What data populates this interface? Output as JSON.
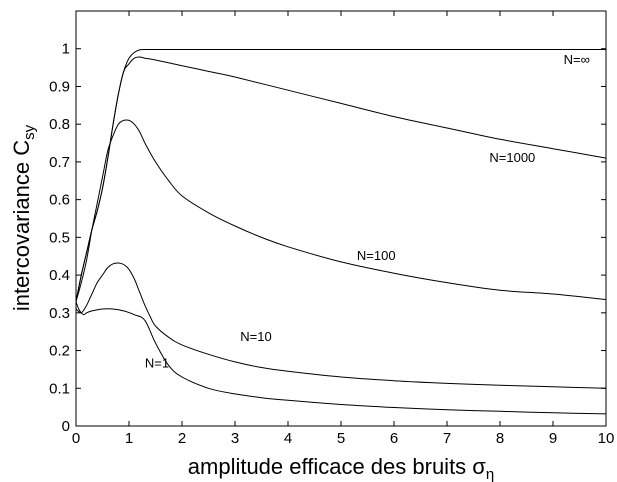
{
  "chart_data": {
    "type": "line",
    "title": "",
    "xlabel": {
      "main": "amplitude efficace des bruits ",
      "symbol": "σ",
      "subscript": "η"
    },
    "ylabel": {
      "main": "intercovariance C",
      "subscript": "sy"
    },
    "xlim": [
      0,
      10
    ],
    "ylim": [
      0,
      1.1
    ],
    "xticks": [
      0,
      1,
      2,
      3,
      4,
      5,
      6,
      7,
      8,
      9,
      10
    ],
    "yticks": [
      0,
      0.1,
      0.2,
      0.3,
      0.4,
      0.5,
      0.6,
      0.7,
      0.8,
      0.9,
      1
    ],
    "grid": false,
    "legend": "none",
    "series": [
      {
        "name": "N=∞",
        "x": [
          0,
          0.1,
          0.2,
          0.3,
          0.4,
          0.5,
          0.6,
          0.7,
          0.8,
          0.9,
          1.0,
          1.1,
          1.2,
          1.3,
          1.5,
          2,
          3,
          4,
          5,
          6,
          7,
          8,
          9,
          10
        ],
        "y": [
          0.33,
          0.4,
          0.46,
          0.52,
          0.57,
          0.63,
          0.71,
          0.8,
          0.88,
          0.94,
          0.975,
          0.99,
          0.997,
          0.998,
          0.998,
          0.998,
          0.998,
          0.998,
          0.998,
          0.998,
          0.998,
          0.998,
          0.998,
          0.998
        ],
        "label_at": [
          9.2,
          0.96
        ]
      },
      {
        "name": "N=1000",
        "x": [
          0,
          0.1,
          0.2,
          0.3,
          0.4,
          0.5,
          0.6,
          0.7,
          0.8,
          0.9,
          1.0,
          1.1,
          1.2,
          1.3,
          1.5,
          2,
          2.5,
          3,
          4,
          5,
          6,
          7,
          8,
          9,
          10
        ],
        "y": [
          0.33,
          0.4,
          0.46,
          0.52,
          0.57,
          0.63,
          0.71,
          0.8,
          0.88,
          0.94,
          0.96,
          0.975,
          0.978,
          0.975,
          0.97,
          0.955,
          0.94,
          0.925,
          0.89,
          0.855,
          0.82,
          0.79,
          0.76,
          0.735,
          0.71
        ],
        "label_at": [
          7.8,
          0.7
        ]
      },
      {
        "name": "N=100",
        "x": [
          0,
          0.1,
          0.2,
          0.3,
          0.4,
          0.5,
          0.6,
          0.7,
          0.8,
          0.9,
          1.0,
          1.1,
          1.2,
          1.3,
          1.5,
          1.75,
          2,
          2.5,
          3,
          3.5,
          4,
          5,
          6,
          7,
          8,
          9,
          10
        ],
        "y": [
          0.33,
          0.38,
          0.44,
          0.52,
          0.59,
          0.66,
          0.73,
          0.77,
          0.8,
          0.81,
          0.81,
          0.8,
          0.78,
          0.75,
          0.7,
          0.65,
          0.61,
          0.565,
          0.53,
          0.5,
          0.475,
          0.435,
          0.405,
          0.38,
          0.36,
          0.35,
          0.335
        ],
        "label_at": [
          5.3,
          0.44
        ]
      },
      {
        "name": "N=10",
        "x": [
          0,
          0.1,
          0.2,
          0.3,
          0.4,
          0.5,
          0.6,
          0.7,
          0.8,
          0.9,
          1.0,
          1.1,
          1.2,
          1.3,
          1.4,
          1.5,
          1.75,
          2,
          2.5,
          3,
          3.5,
          4,
          5,
          6,
          7,
          8,
          9,
          10
        ],
        "y": [
          0.31,
          0.3,
          0.32,
          0.35,
          0.38,
          0.4,
          0.42,
          0.43,
          0.432,
          0.428,
          0.415,
          0.39,
          0.355,
          0.32,
          0.29,
          0.265,
          0.235,
          0.215,
          0.19,
          0.17,
          0.155,
          0.145,
          0.13,
          0.12,
          0.113,
          0.108,
          0.104,
          0.1
        ],
        "label_at": [
          3.1,
          0.225
        ]
      },
      {
        "name": "N=1",
        "x": [
          0,
          0.05,
          0.1,
          0.15,
          0.2,
          0.3,
          0.5,
          0.7,
          0.9,
          1.1,
          1.3,
          1.5,
          1.75,
          2,
          2.5,
          3,
          3.5,
          4,
          5,
          6,
          7,
          8,
          9,
          10
        ],
        "y": [
          0.33,
          0.31,
          0.3,
          0.295,
          0.3,
          0.305,
          0.31,
          0.31,
          0.305,
          0.295,
          0.28,
          0.22,
          0.16,
          0.13,
          0.1,
          0.085,
          0.075,
          0.068,
          0.057,
          0.049,
          0.043,
          0.039,
          0.035,
          0.032
        ],
        "label_at": [
          1.3,
          0.155
        ]
      }
    ]
  }
}
